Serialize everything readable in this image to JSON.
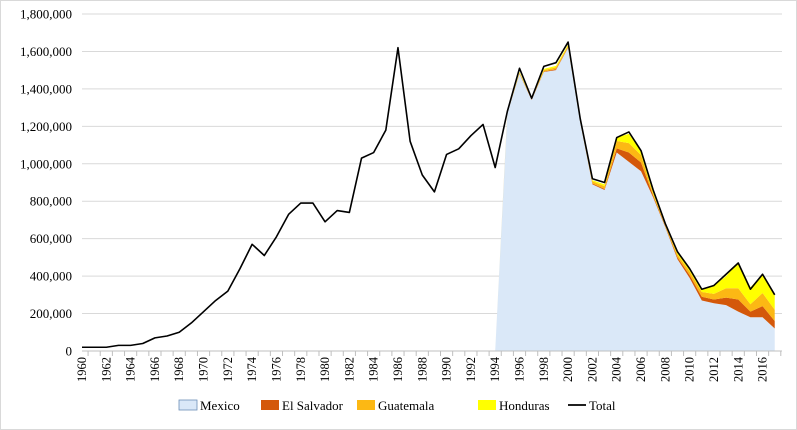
{
  "chart_data": {
    "type": "area",
    "ylim": [
      0,
      1800000
    ],
    "yticks": [
      "0",
      "200,000",
      "400,000",
      "600,000",
      "800,000",
      "1,000,000",
      "1,200,000",
      "1,400,000",
      "1,600,000",
      "1,800,000"
    ],
    "xticks": [
      "1960",
      "1962",
      "1964",
      "1966",
      "1968",
      "1970",
      "1972",
      "1974",
      "1976",
      "1978",
      "1980",
      "1982",
      "1984",
      "1986",
      "1988",
      "1990",
      "1992",
      "1994",
      "1996",
      "1998",
      "2000",
      "2002",
      "2004",
      "2006",
      "2008",
      "2010",
      "2012",
      "2014",
      "2016"
    ],
    "grid": true,
    "legend": "bottom",
    "stacked_years": [
      1994,
      1995,
      1996,
      1997,
      1998,
      1999,
      2000,
      2001,
      2002,
      2003,
      2004,
      2005,
      2006,
      2007,
      2008,
      2009,
      2010,
      2011,
      2012,
      2013,
      2014,
      2015,
      2016,
      2017
    ],
    "series": [
      {
        "name": "Mexico",
        "color": "#dae8f8",
        "values": [
          0,
          1270000,
          1480000,
          1340000,
          1490000,
          1500000,
          1620000,
          1220000,
          890000,
          860000,
          1060000,
          1010000,
          960000,
          820000,
          660000,
          490000,
          390000,
          270000,
          255000,
          245000,
          210000,
          180000,
          180000,
          120000
        ]
      },
      {
        "name": "El Salvador",
        "color": "#d4580a",
        "values": [
          0,
          2000,
          3000,
          3000,
          3000,
          5000,
          3000,
          2000,
          5000,
          5000,
          22000,
          50000,
          47000,
          10000,
          5000,
          10000,
          15000,
          20000,
          20000,
          40000,
          65000,
          30000,
          60000,
          40000
        ]
      },
      {
        "name": "Guatemala",
        "color": "#fcb814",
        "values": [
          0,
          3000,
          4000,
          4000,
          8000,
          10000,
          8000,
          6000,
          12000,
          15000,
          40000,
          50000,
          40000,
          10000,
          7000,
          15000,
          20000,
          25000,
          30000,
          50000,
          60000,
          40000,
          70000,
          60000
        ]
      },
      {
        "name": "Honduras",
        "color": "#ffff00",
        "values": [
          0,
          2000,
          4000,
          4000,
          6000,
          8000,
          7000,
          5000,
          6000,
          10000,
          20000,
          50000,
          20000,
          15000,
          5000,
          10000,
          15000,
          15000,
          45000,
          65000,
          140000,
          90000,
          100000,
          80000
        ]
      }
    ],
    "total": {
      "name": "Total",
      "color": "#000000",
      "years": [
        1960,
        1961,
        1962,
        1963,
        1964,
        1965,
        1966,
        1967,
        1968,
        1969,
        1970,
        1971,
        1972,
        1973,
        1974,
        1975,
        1976,
        1977,
        1978,
        1979,
        1980,
        1981,
        1982,
        1983,
        1984,
        1985,
        1986,
        1987,
        1988,
        1989,
        1990,
        1991,
        1992,
        1993,
        1994,
        1995,
        1996,
        1997,
        1998,
        1999,
        2000,
        2001,
        2002,
        2003,
        2004,
        2005,
        2006,
        2007,
        2008,
        2009,
        2010,
        2011,
        2012,
        2013,
        2014,
        2015,
        2016,
        2017
      ],
      "values": [
        20000,
        20000,
        20000,
        30000,
        30000,
        40000,
        70000,
        80000,
        100000,
        150000,
        210000,
        270000,
        320000,
        440000,
        570000,
        510000,
        610000,
        730000,
        790000,
        790000,
        690000,
        750000,
        740000,
        1030000,
        1060000,
        1180000,
        1620000,
        1120000,
        940000,
        850000,
        1050000,
        1080000,
        1150000,
        1210000,
        980000,
        1280000,
        1510000,
        1350000,
        1520000,
        1540000,
        1650000,
        1240000,
        920000,
        900000,
        1140000,
        1170000,
        1070000,
        860000,
        680000,
        530000,
        440000,
        330000,
        350000,
        410000,
        470000,
        330000,
        410000,
        300000
      ]
    }
  }
}
